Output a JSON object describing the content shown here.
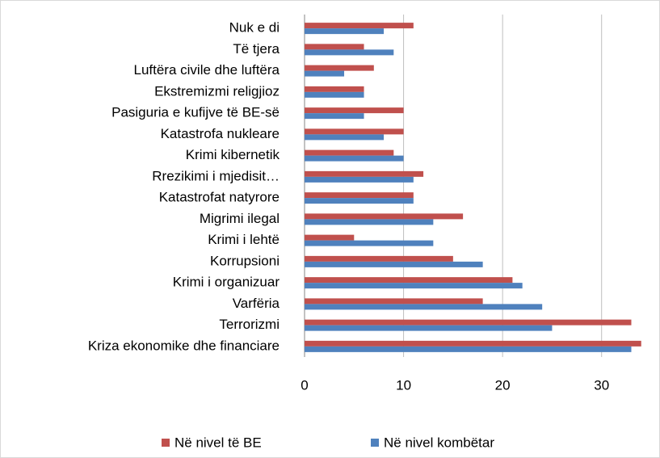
{
  "chart_data": {
    "type": "barh",
    "categories": [
      "Nuk e di",
      "Të tjera",
      "Luftëra civile dhe luftëra",
      "Ekstremizmi religjioz",
      "Pasiguria e kufijve të BE-së",
      "Katastrofa nukleare",
      "Krimi kibernetik",
      "Rrezikimi i mjedisit…",
      "Katastrofat natyrore",
      "Migrimi ilegal",
      "Krimi i lehtë",
      "Korrupsioni",
      "Krimi i organizuar",
      "Varfëria",
      "Terrorizmi",
      "Kriza ekonomike dhe financiare"
    ],
    "series": [
      {
        "name": "Në nivel të BE",
        "color": "#c0504d",
        "values": [
          11,
          6,
          7,
          6,
          10,
          10,
          9,
          12,
          11,
          16,
          5,
          15,
          21,
          18,
          33,
          34
        ]
      },
      {
        "name": "Në nivel kombëtar",
        "color": "#4f81bd",
        "values": [
          8,
          9,
          4,
          6,
          6,
          8,
          10,
          11,
          11,
          13,
          13,
          18,
          22,
          24,
          25,
          33
        ]
      }
    ],
    "xlim": [
      0,
      35
    ],
    "xticks": [
      0,
      10,
      20,
      30
    ],
    "grid": true,
    "legend": "bottom"
  }
}
